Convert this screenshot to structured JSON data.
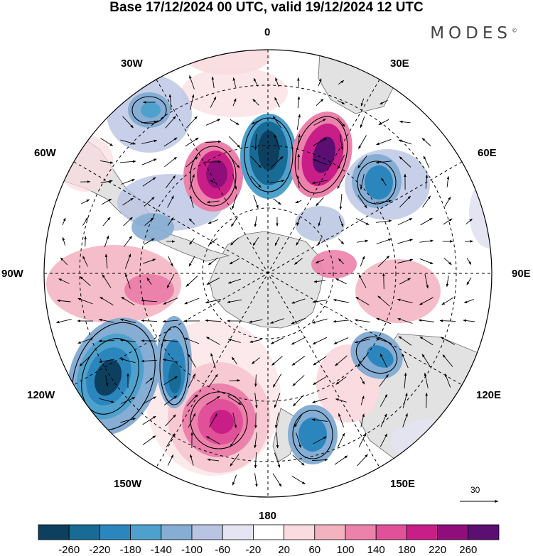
{
  "title": "Base 17/12/2024 00 UTC, valid 19/12/2024 12 UTC",
  "brand": "MODES",
  "brand_mark": "©",
  "longitude_labels": {
    "top": "0",
    "bottom": "180",
    "left": "90W",
    "right": "90E",
    "upper_left_1": "30W",
    "upper_left_2": "60W",
    "upper_right_1": "30E",
    "upper_right_2": "60E",
    "lower_left_1": "120W",
    "lower_left_2": "150W",
    "lower_right_1": "120E",
    "lower_right_2": "150E"
  },
  "reference_vector": {
    "value": "30",
    "icon": "arrow-right-icon"
  },
  "colorbar": {
    "labels": [
      "-260",
      "-220",
      "-180",
      "-140",
      "-100",
      "-60",
      "-20",
      "20",
      "60",
      "100",
      "140",
      "180",
      "220",
      "260"
    ],
    "colors": [
      "#0d3f5f",
      "#176b95",
      "#2b86bd",
      "#4ea1cc",
      "#86add3",
      "#b9c4e2",
      "#e4e4f2",
      "#ffffff",
      "#fadbdf",
      "#f3b2c0",
      "#ec82ab",
      "#e05199",
      "#c91e88",
      "#900e7c",
      "#5b0f73"
    ]
  },
  "map": {
    "land_color": "#e2e2e2",
    "graticule": "dashed",
    "anomaly_features": [
      {
        "lon": -105,
        "value": -260
      },
      {
        "lon": -80,
        "value": 140
      },
      {
        "lon": -32,
        "value": 260
      },
      {
        "lon": 0,
        "value": -260
      },
      {
        "lon": 35,
        "value": 260
      },
      {
        "lon": 40,
        "value": -180
      },
      {
        "lon": -20,
        "value": -140
      },
      {
        "lon": 80,
        "value": 100
      },
      {
        "lon": 100,
        "value": 60
      },
      {
        "lon": 130,
        "value": -180
      },
      {
        "lon": 160,
        "value": -180
      },
      {
        "lon": -160,
        "value": 260
      },
      {
        "lon": -140,
        "value": -180
      },
      {
        "lon": -75,
        "value": -100
      }
    ]
  }
}
